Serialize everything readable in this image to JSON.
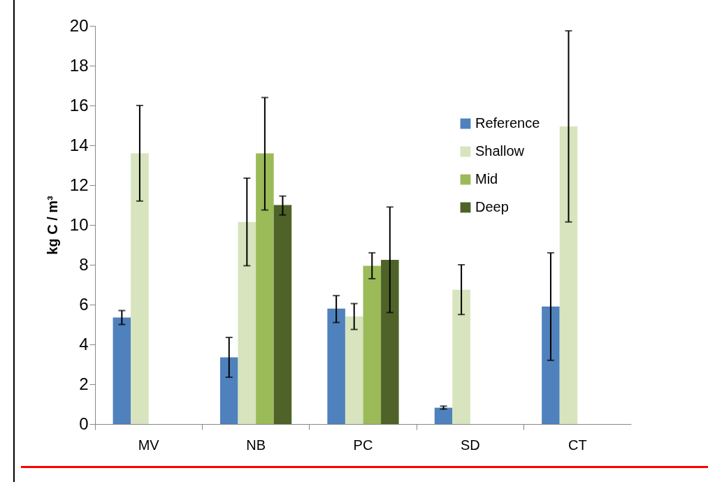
{
  "chart_data": {
    "type": "bar",
    "ylabel": "kg C / m³",
    "categories": [
      "MV",
      "NB",
      "PC",
      "SD",
      "CT"
    ],
    "ylim": [
      0,
      20
    ],
    "yticks": [
      0,
      2,
      4,
      6,
      8,
      10,
      12,
      14,
      16,
      18,
      20
    ],
    "grid": false,
    "legend": "top right",
    "series": [
      {
        "name": "Reference",
        "color": "#4f81bd",
        "values": [
          5.35,
          3.35,
          5.8,
          0.82,
          5.9
        ],
        "errors": [
          [
            5.0,
            5.7
          ],
          [
            2.35,
            4.35
          ],
          [
            5.1,
            6.45
          ],
          [
            0.75,
            0.9
          ],
          [
            3.2,
            8.6
          ]
        ]
      },
      {
        "name": "Shallow",
        "color": "#d7e4bd",
        "values": [
          13.6,
          10.15,
          5.4,
          6.75,
          14.95
        ],
        "errors": [
          [
            11.2,
            16.0
          ],
          [
            7.95,
            12.35
          ],
          [
            4.75,
            6.05
          ],
          [
            5.5,
            8.0
          ],
          [
            10.15,
            19.75
          ]
        ]
      },
      {
        "name": "Mid",
        "color": "#9bbb59",
        "values": [
          null,
          13.6,
          7.95,
          null,
          null
        ],
        "errors": [
          null,
          [
            10.75,
            16.4
          ],
          [
            7.3,
            8.6
          ],
          null,
          null
        ]
      },
      {
        "name": "Deep",
        "color": "#4f6228",
        "values": [
          null,
          11.0,
          8.25,
          null,
          null
        ],
        "errors": [
          null,
          [
            10.5,
            11.45
          ],
          [
            5.6,
            10.9
          ],
          null,
          null
        ]
      }
    ]
  }
}
